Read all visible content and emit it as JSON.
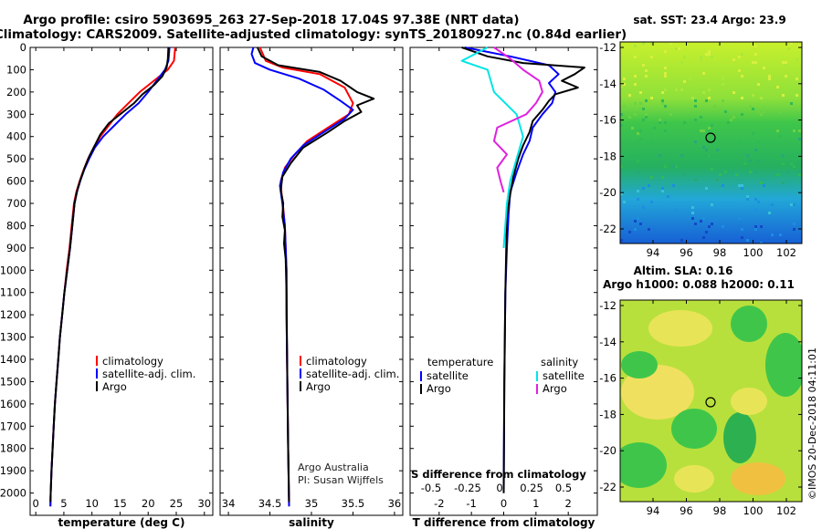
{
  "header": {
    "line1": "Argo profile: csiro 5903695_263 27-Sep-2018 17.04S 97.38E (NRT data)",
    "line2": "Climatology: CARS2009. Satellite-adjusted climatology: synTS_20180927.nc (0.84d earlier)"
  },
  "colors": {
    "climatology": "#ff0000",
    "satellite": "#0000ff",
    "argo": "#000000",
    "sat_salinity": "#00e5e5",
    "argo_salinity": "#e020e0"
  },
  "depth_ticks": [
    0,
    100,
    200,
    300,
    400,
    500,
    600,
    700,
    800,
    900,
    1000,
    1100,
    1200,
    1300,
    1400,
    1500,
    1600,
    1700,
    1800,
    1900,
    2000
  ],
  "chart_data": [
    {
      "type": "line",
      "id": "temperature",
      "xlabel": "temperature (deg C)",
      "xticks": [
        0,
        5,
        10,
        15,
        20,
        25,
        30
      ],
      "xlim": [
        -1,
        31.5
      ],
      "ylim": [
        2100,
        0
      ],
      "legend": [
        "climatology",
        "satellite-adj. clim.",
        "Argo"
      ],
      "series": [
        {
          "name": "climatology",
          "color": "#ff0000",
          "points": [
            [
              24.8,
              0
            ],
            [
              24.6,
              60
            ],
            [
              23.5,
              100
            ],
            [
              21,
              150
            ],
            [
              18.5,
              200
            ],
            [
              16.5,
              250
            ],
            [
              14.5,
              300
            ],
            [
              13,
              350
            ],
            [
              11.5,
              400
            ],
            [
              10.3,
              450
            ],
            [
              9.3,
              500
            ],
            [
              8.5,
              550
            ],
            [
              7.8,
              600
            ],
            [
              7.2,
              650
            ],
            [
              6.8,
              700
            ],
            [
              6.4,
              800
            ],
            [
              6,
              900
            ],
            [
              5.5,
              1000
            ],
            [
              5.1,
              1100
            ],
            [
              4.7,
              1200
            ],
            [
              4.3,
              1300
            ],
            [
              4,
              1400
            ],
            [
              3.7,
              1500
            ],
            [
              3.4,
              1600
            ],
            [
              3.2,
              1700
            ],
            [
              3,
              1800
            ],
            [
              2.8,
              1900
            ],
            [
              2.65,
              2000
            ],
            [
              2.6,
              2060
            ]
          ]
        },
        {
          "name": "satellite-adj. clim.",
          "color": "#0000ff",
          "points": [
            [
              23.8,
              0
            ],
            [
              23.6,
              60
            ],
            [
              23,
              100
            ],
            [
              21.5,
              150
            ],
            [
              20,
              200
            ],
            [
              18.3,
              250
            ],
            [
              16,
              300
            ],
            [
              14,
              350
            ],
            [
              12,
              400
            ],
            [
              10.5,
              450
            ],
            [
              9.5,
              500
            ],
            [
              8.6,
              550
            ],
            [
              7.9,
              600
            ],
            [
              7.3,
              650
            ],
            [
              6.9,
              700
            ],
            [
              6.5,
              800
            ],
            [
              6.1,
              900
            ],
            [
              5.6,
              1000
            ],
            [
              5.1,
              1100
            ],
            [
              4.7,
              1200
            ],
            [
              4.3,
              1300
            ],
            [
              4,
              1400
            ],
            [
              3.7,
              1500
            ],
            [
              3.4,
              1600
            ],
            [
              3.2,
              1700
            ],
            [
              3,
              1800
            ],
            [
              2.8,
              1900
            ],
            [
              2.65,
              2000
            ],
            [
              2.6,
              2060
            ]
          ]
        },
        {
          "name": "Argo",
          "color": "#000000",
          "points": [
            [
              23.6,
              0
            ],
            [
              23.5,
              50
            ],
            [
              23.3,
              90
            ],
            [
              22.5,
              130
            ],
            [
              21,
              170
            ],
            [
              19,
              210
            ],
            [
              17.5,
              250
            ],
            [
              15,
              300
            ],
            [
              13,
              340
            ],
            [
              11.5,
              390
            ],
            [
              10.5,
              440
            ],
            [
              9.5,
              490
            ],
            [
              8.7,
              540
            ],
            [
              8,
              590
            ],
            [
              7.4,
              640
            ],
            [
              6.9,
              700
            ],
            [
              6.5,
              800
            ],
            [
              6.1,
              900
            ],
            [
              5.6,
              1000
            ],
            [
              5.1,
              1100
            ],
            [
              4.7,
              1200
            ],
            [
              4.3,
              1300
            ],
            [
              4,
              1400
            ],
            [
              3.7,
              1500
            ],
            [
              3.4,
              1600
            ],
            [
              3.2,
              1700
            ],
            [
              3,
              1800
            ],
            [
              2.8,
              1900
            ],
            [
              2.65,
              2000
            ],
            [
              2.6,
              2040
            ]
          ]
        }
      ]
    },
    {
      "type": "line",
      "id": "salinity",
      "xlabel": "salinity",
      "xticks": [
        34,
        34.5,
        35,
        35.5,
        36
      ],
      "xlim": [
        33.9,
        36.1
      ],
      "ylim": [
        2100,
        0
      ],
      "legend": [
        "climatology",
        "satellite-adj. clim.",
        "Argo"
      ],
      "annotations": [
        "Argo Australia",
        "PI: Susan Wijffels"
      ],
      "series": [
        {
          "name": "climatology",
          "color": "#ff0000",
          "points": [
            [
              34.38,
              0
            ],
            [
              34.45,
              60
            ],
            [
              34.65,
              90
            ],
            [
              35.1,
              120
            ],
            [
              35.4,
              180
            ],
            [
              35.5,
              250
            ],
            [
              35.45,
              300
            ],
            [
              35.2,
              360
            ],
            [
              34.95,
              420
            ],
            [
              34.8,
              480
            ],
            [
              34.68,
              540
            ],
            [
              34.63,
              600
            ],
            [
              34.64,
              660
            ],
            [
              34.66,
              720
            ],
            [
              34.68,
              800
            ],
            [
              34.69,
              900
            ],
            [
              34.7,
              1000
            ],
            [
              34.7,
              1200
            ],
            [
              34.71,
              1500
            ],
            [
              34.72,
              1800
            ],
            [
              34.73,
              2060
            ]
          ]
        },
        {
          "name": "satellite-adj. clim.",
          "color": "#0000ff",
          "points": [
            [
              34.3,
              0
            ],
            [
              34.28,
              30
            ],
            [
              34.32,
              70
            ],
            [
              34.5,
              100
            ],
            [
              34.85,
              140
            ],
            [
              35.15,
              190
            ],
            [
              35.35,
              240
            ],
            [
              35.5,
              280
            ],
            [
              35.4,
              320
            ],
            [
              35.15,
              380
            ],
            [
              34.9,
              440
            ],
            [
              34.75,
              500
            ],
            [
              34.66,
              560
            ],
            [
              34.62,
              620
            ],
            [
              34.65,
              700
            ],
            [
              34.68,
              800
            ],
            [
              34.69,
              900
            ],
            [
              34.7,
              1000
            ],
            [
              34.7,
              1200
            ],
            [
              34.71,
              1500
            ],
            [
              34.72,
              1800
            ],
            [
              34.73,
              2060
            ]
          ]
        },
        {
          "name": "Argo",
          "color": "#000000",
          "points": [
            [
              34.35,
              0
            ],
            [
              34.4,
              40
            ],
            [
              34.6,
              80
            ],
            [
              35.1,
              110
            ],
            [
              35.35,
              150
            ],
            [
              35.55,
              200
            ],
            [
              35.75,
              230
            ],
            [
              35.55,
              260
            ],
            [
              35.6,
              290
            ],
            [
              35.4,
              330
            ],
            [
              35.2,
              380
            ],
            [
              34.9,
              450
            ],
            [
              34.75,
              520
            ],
            [
              34.65,
              580
            ],
            [
              34.63,
              640
            ],
            [
              34.66,
              700
            ],
            [
              34.65,
              760
            ],
            [
              34.68,
              820
            ],
            [
              34.67,
              880
            ],
            [
              34.69,
              950
            ],
            [
              34.7,
              1100
            ],
            [
              34.71,
              1500
            ],
            [
              34.72,
              1800
            ],
            [
              34.73,
              2040
            ]
          ]
        }
      ]
    },
    {
      "type": "line",
      "id": "difference",
      "xlabel": "T difference from climatology",
      "xlabel2": "S difference from climatology",
      "xticks": [
        -2,
        -1,
        0,
        1,
        2
      ],
      "xticks2": [
        "-0.5",
        "-0.25",
        "0",
        "0.25",
        "0.5"
      ],
      "xlim": [
        -2.9,
        2.9
      ],
      "ylim": [
        2100,
        0
      ],
      "legend_title_left": "temperature",
      "legend_title_right": "salinity",
      "legend_left": [
        "satellite",
        "Argo"
      ],
      "legend_right": [
        "satellite",
        "Argo"
      ],
      "series": [
        {
          "name": "temperature satellite",
          "color": "#0000ff",
          "points": [
            [
              -1.2,
              0
            ],
            [
              0.2,
              40
            ],
            [
              1.4,
              80
            ],
            [
              1.7,
              120
            ],
            [
              1.4,
              160
            ],
            [
              1.6,
              200
            ],
            [
              1.5,
              250
            ],
            [
              1.2,
              300
            ],
            [
              0.9,
              360
            ],
            [
              0.8,
              420
            ],
            [
              0.6,
              480
            ],
            [
              0.4,
              560
            ],
            [
              0.2,
              650
            ],
            [
              0.15,
              750
            ],
            [
              0.1,
              900
            ],
            [
              0.05,
              1100
            ],
            [
              0.02,
              1500
            ],
            [
              0,
              2000
            ]
          ]
        },
        {
          "name": "temperature Argo",
          "color": "#000000",
          "points": [
            [
              -1.3,
              0
            ],
            [
              -0.5,
              40
            ],
            [
              0.6,
              70
            ],
            [
              2.5,
              90
            ],
            [
              2.2,
              120
            ],
            [
              1.8,
              150
            ],
            [
              2.3,
              180
            ],
            [
              1.6,
              210
            ],
            [
              1.4,
              240
            ],
            [
              1.2,
              280
            ],
            [
              0.9,
              330
            ],
            [
              0.8,
              380
            ],
            [
              0.6,
              440
            ],
            [
              0.45,
              500
            ],
            [
              0.3,
              580
            ],
            [
              0.2,
              660
            ],
            [
              0.1,
              760
            ],
            [
              0.08,
              900
            ],
            [
              0.05,
              1100
            ],
            [
              0.02,
              1500
            ],
            [
              0,
              2000
            ]
          ]
        },
        {
          "name": "salinity satellite",
          "color": "#00e5e5",
          "points": [
            [
              -0.5,
              0
            ],
            [
              -1.3,
              60
            ],
            [
              -0.5,
              100
            ],
            [
              -0.3,
              200
            ],
            [
              0.4,
              300
            ],
            [
              0.6,
              400
            ],
            [
              0.4,
              500
            ],
            [
              0.2,
              600
            ],
            [
              0.1,
              700
            ],
            [
              0.05,
              800
            ],
            [
              0,
              900
            ]
          ]
        },
        {
          "name": "salinity Argo",
          "color": "#e020e0",
          "points": [
            [
              -0.3,
              0
            ],
            [
              0.2,
              50
            ],
            [
              0.6,
              100
            ],
            [
              1.1,
              150
            ],
            [
              1.2,
              200
            ],
            [
              1.0,
              250
            ],
            [
              0.7,
              300
            ],
            [
              -0.2,
              360
            ],
            [
              -0.3,
              420
            ],
            [
              0.1,
              480
            ],
            [
              -0.2,
              540
            ],
            [
              -0.1,
              600
            ],
            [
              0,
              650
            ]
          ]
        }
      ]
    }
  ],
  "maps": {
    "top": {
      "title": "sat. SST: 23.4 Argo: 23.9",
      "yticks": [
        "-12",
        "-14",
        "-16",
        "-18",
        "-20",
        "-22"
      ],
      "xticks": [
        "94",
        "96",
        "98",
        "100",
        "102"
      ]
    },
    "bottom": {
      "title1": "Altim. SLA: 0.16",
      "title2": "Argo h1000: 0.088 h2000: 0.11",
      "yticks": [
        "-12",
        "-14",
        "-16",
        "-18",
        "-20",
        "-22"
      ],
      "xticks": [
        "94",
        "96",
        "98",
        "100",
        "102"
      ]
    }
  },
  "footer": {
    "stamp": "©IMOS 20-Dec-2018 04:11:01"
  }
}
